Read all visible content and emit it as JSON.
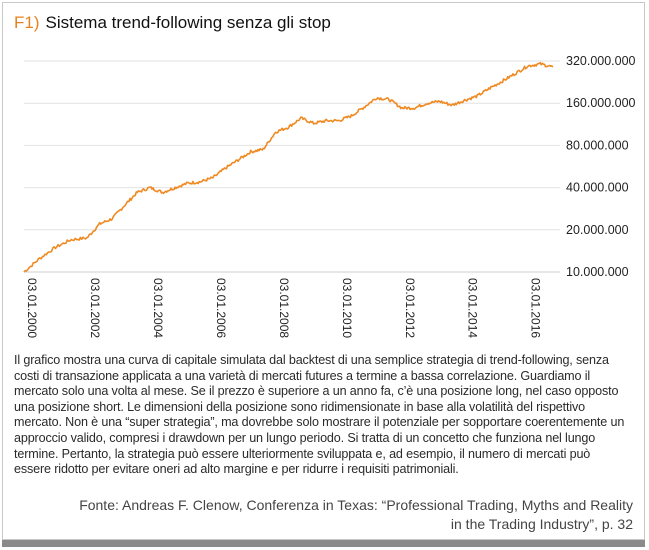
{
  "title": {
    "label": "F1)",
    "text": "Sistema trend-following senza gli stop"
  },
  "chart_data": {
    "type": "line",
    "y_scale": "log",
    "y_ticks": [
      {
        "value": 10000000,
        "label": "10.000.000"
      },
      {
        "value": 20000000,
        "label": "20.000.000"
      },
      {
        "value": 40000000,
        "label": "40.000.000"
      },
      {
        "value": 80000000,
        "label": "80.000.000"
      },
      {
        "value": 160000000,
        "label": "160.000.000"
      },
      {
        "value": 320000000,
        "label": "320.000.000"
      }
    ],
    "x_ticks": [
      {
        "value": 2000.0,
        "label": "03.01.2000"
      },
      {
        "value": 2002.0,
        "label": "03.01.2002"
      },
      {
        "value": 2004.0,
        "label": "03.01.2004"
      },
      {
        "value": 2006.0,
        "label": "03.01.2006"
      },
      {
        "value": 2008.0,
        "label": "03.01.2008"
      },
      {
        "value": 2010.0,
        "label": "03.01.2010"
      },
      {
        "value": 2012.0,
        "label": "03.01.2012"
      },
      {
        "value": 2014.0,
        "label": "03.01.2014"
      },
      {
        "value": 2016.0,
        "label": "03.01.2016"
      }
    ],
    "xlim": [
      2000.0,
      2016.9
    ],
    "ylim": [
      9500000,
      380000000
    ],
    "grid": "horizontal",
    "line_color": "#ef8a22",
    "series": [
      {
        "x": [
          2000.0,
          2000.5,
          2001.0,
          2001.5,
          2002.0,
          2002.4,
          2002.8,
          2003.2,
          2003.6,
          2004.0,
          2004.4,
          2004.8,
          2005.2,
          2005.6,
          2006.0,
          2006.4,
          2006.8,
          2007.2,
          2007.6,
          2008.0,
          2008.4,
          2008.8,
          2009.2,
          2009.6,
          2010.0,
          2010.4,
          2010.8,
          2011.2,
          2011.6,
          2012.0,
          2012.4,
          2012.8,
          2013.2,
          2013.6,
          2014.0,
          2014.4,
          2014.8,
          2015.2,
          2015.6,
          2016.0,
          2016.4,
          2016.8
        ],
        "y": [
          10000000,
          12500000,
          15000000,
          17000000,
          17500000,
          22000000,
          24000000,
          30000000,
          37000000,
          40000000,
          37000000,
          40000000,
          43000000,
          44000000,
          47000000,
          55000000,
          63000000,
          72000000,
          75000000,
          100000000,
          108000000,
          125000000,
          115000000,
          120000000,
          120000000,
          130000000,
          150000000,
          175000000,
          170000000,
          148000000,
          148000000,
          160000000,
          165000000,
          155000000,
          168000000,
          180000000,
          205000000,
          230000000,
          260000000,
          295000000,
          305000000,
          290000000
        ]
      }
    ]
  },
  "caption": "Il grafico mostra una curva di capitale simulata dal backtest di una semplice strategia di trend-following, senza costi di transazione applicata a una varietà di mercati futures a termine a bassa correlazione. Guardiamo il mercato solo una volta al mese. Se il prezzo è superiore a un anno fa, c’è una posizione long, nel caso opposto una posizione short. Le dimensioni della posizione sono ridimensionate in base alla volatilità del rispettivo mercato. Non è una “super strategia”, ma dovrebbe solo mostrare il potenziale per sopportare coerentemente un approccio valido, compresi i drawdown per un lungo periodo. Si tratta di un concetto che funziona nel lungo termine. Pertanto, la strategia può essere ulteriormente sviluppata e, ad esempio, il numero di mercati può essere ridotto per evitare oneri ad alto margine e per ridurre i requisiti patrimoniali.",
  "source": "Fonte: Andreas F. Clenow, Conferenza in Texas: “Professional Trading, Myths and Reality in the Trading Industry”, p. 32"
}
